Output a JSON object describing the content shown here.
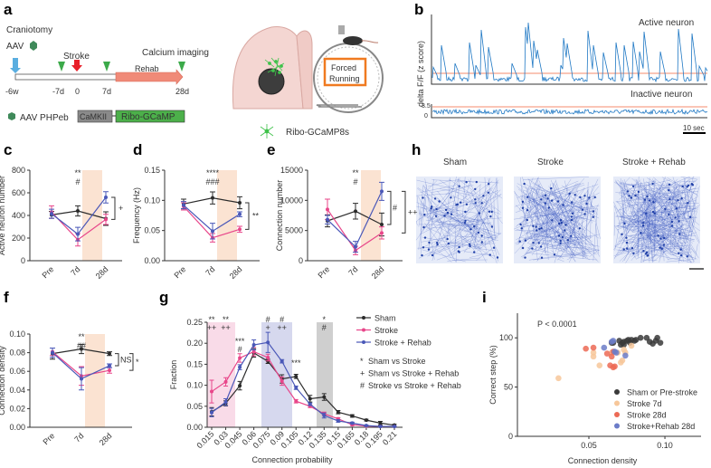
{
  "panel_labels": [
    "a",
    "b",
    "c",
    "d",
    "e",
    "f",
    "g",
    "h",
    "i"
  ],
  "colors": {
    "sham": "#2b2b2b",
    "stroke": "#e8468a",
    "rehab": "#4a58b8",
    "shade_orange": "#fbe3d2",
    "shade_pink": "#f9dbe8",
    "shade_blue": "#d6d8ee",
    "shade_gray": "#cfcfcf",
    "threshold": "#f0643c",
    "trace": "#1f78c4"
  },
  "panel_a": {
    "craniotomy": "Craniotomy",
    "aav": "AAV",
    "stroke": "Stroke",
    "calcium_imaging": "Calcium imaging",
    "rehab": "Rehab",
    "timepoints": [
      "-6w",
      "-7d",
      "0",
      "7d",
      "28d"
    ],
    "construct_label": "AAV PHPeb",
    "promoter": "CaMKII",
    "gene": "Ribo-GCaMP",
    "wheel_label_1": "Forced",
    "wheel_label_2": "Running",
    "neuron_legend": "Ribo-GCaMP8s"
  },
  "panel_b": {
    "ylabel": "delta F/F (z score)",
    "active": "Active neuron",
    "inactive": "Inactive neuron",
    "inactive_ticks": [
      "3.5",
      "0"
    ],
    "scale_bar": "10 sec"
  },
  "panel_h": {
    "titles": [
      "Sham",
      "Stroke",
      "Stroke + Rehab"
    ]
  },
  "chart_data": [
    {
      "id": "c",
      "type": "line",
      "ylabel": "Active neuron number",
      "categories": [
        "Pre",
        "7d",
        "28d"
      ],
      "ylim": [
        0,
        800
      ],
      "yticks": [
        "0",
        "200",
        "400",
        "600",
        "800"
      ],
      "series": [
        {
          "name": "Sham",
          "values": [
            405,
            440,
            372
          ],
          "err": [
            30,
            45,
            60
          ]
        },
        {
          "name": "Stroke",
          "values": [
            430,
            185,
            365
          ],
          "err": [
            55,
            55,
            45
          ]
        },
        {
          "name": "Stroke + Rehab",
          "values": [
            415,
            235,
            560
          ],
          "err": [
            40,
            60,
            50
          ]
        }
      ],
      "annotations": [
        "**",
        "#"
      ],
      "bracket": [
        "+"
      ]
    },
    {
      "id": "d",
      "type": "line",
      "ylabel": "Frequency (Hz)",
      "categories": [
        "Pre",
        "7d",
        "28d"
      ],
      "ylim": [
        0,
        0.15
      ],
      "yticks": [
        "0.00",
        "0.05",
        "0.10",
        "0.15"
      ],
      "series": [
        {
          "name": "Sham",
          "values": [
            0.094,
            0.104,
            0.096
          ],
          "err": [
            0.008,
            0.01,
            0.01
          ]
        },
        {
          "name": "Stroke",
          "values": [
            0.09,
            0.038,
            0.052
          ],
          "err": [
            0.006,
            0.007,
            0.005
          ]
        },
        {
          "name": "Stroke + Rehab",
          "values": [
            0.092,
            0.049,
            0.077
          ],
          "err": [
            0.006,
            0.013,
            0.004
          ]
        }
      ],
      "annotations": [
        "****",
        "###"
      ],
      "bracket": [
        "**"
      ]
    },
    {
      "id": "e",
      "type": "line",
      "ylabel": "Connection number",
      "categories": [
        "Pre",
        "7d",
        "28d"
      ],
      "ylim": [
        0,
        15000
      ],
      "yticks": [
        "0",
        "5000",
        "10000",
        "15000"
      ],
      "series": [
        {
          "name": "Sham",
          "values": [
            6600,
            8200,
            6000
          ],
          "err": [
            1000,
            1300,
            1900
          ]
        },
        {
          "name": "Stroke",
          "values": [
            8500,
            1700,
            4600
          ],
          "err": [
            1700,
            700,
            1000
          ]
        },
        {
          "name": "Stroke + Rehab",
          "values": [
            6800,
            2300,
            11500
          ],
          "err": [
            700,
            900,
            1500
          ]
        }
      ],
      "annotations": [
        "**",
        "#"
      ],
      "bracket": [
        "#",
        "++"
      ]
    },
    {
      "id": "f",
      "type": "line",
      "ylabel": "Connection density",
      "categories": [
        "Pre",
        "7d",
        "28d"
      ],
      "ylim": [
        0,
        0.1
      ],
      "yticks": [
        "0.00",
        "0.02",
        "0.04",
        "0.06",
        "0.08",
        "0.10"
      ],
      "series": [
        {
          "name": "Sham",
          "values": [
            0.079,
            0.084,
            0.079
          ],
          "err": [
            0.006,
            0.005,
            0.002
          ]
        },
        {
          "name": "Stroke",
          "values": [
            0.081,
            0.055,
            0.061
          ],
          "err": [
            0.004,
            0.01,
            0.003
          ]
        },
        {
          "name": "Stroke + Rehab",
          "values": [
            0.08,
            0.052,
            0.066
          ],
          "err": [
            0.005,
            0.012,
            0.002
          ]
        }
      ],
      "annotations": [
        "**",
        "##"
      ],
      "bracket": [
        "NS",
        "*"
      ]
    },
    {
      "id": "g",
      "type": "line",
      "xlabel": "Connection probability",
      "ylabel": "Fraction",
      "ylim": [
        0,
        0.25
      ],
      "yticks": [
        "0.00",
        "0.05",
        "0.10",
        "0.15",
        "0.20",
        "0.25"
      ],
      "categories": [
        "0.015",
        "0.03",
        "0.045",
        "0.06",
        "0.075",
        "0.09",
        "0.105",
        "0.12",
        "0.135",
        "0.15",
        "0.165",
        "0.18",
        "0.195",
        "0.21"
      ],
      "series": [
        {
          "name": "Sham",
          "values": [
            0.037,
            0.057,
            0.099,
            0.177,
            0.157,
            0.115,
            0.121,
            0.068,
            0.072,
            0.036,
            0.027,
            0.017,
            0.01,
            0.005
          ],
          "err": [
            0.01,
            0.006,
            0.01,
            0.01,
            0.005,
            0.01,
            0.005,
            0.008,
            0.008,
            0.004,
            0.003,
            0.002,
            0.004,
            0.002
          ]
        },
        {
          "name": "Stroke",
          "values": [
            0.085,
            0.108,
            0.165,
            0.18,
            0.166,
            0.11,
            0.062,
            0.05,
            0.032,
            0.02,
            0.006,
            0.003,
            0.002,
            0.002
          ],
          "err": [
            0.027,
            0.01,
            0.01,
            0.01,
            0.008,
            0.01,
            0.004,
            0.003,
            0.004,
            0.003,
            0.002,
            0.001,
            0.001,
            0.001
          ]
        },
        {
          "name": "Stroke + Rehab",
          "values": [
            0.035,
            0.06,
            0.143,
            0.196,
            0.202,
            0.157,
            0.094,
            0.055,
            0.028,
            0.015,
            0.01,
            0.004,
            0.002,
            0.002
          ],
          "err": [
            0.01,
            0.008,
            0.006,
            0.012,
            0.024,
            0.004,
            0.004,
            0.003,
            0.006,
            0.003,
            0.002,
            0.001,
            0.001,
            0.001
          ]
        }
      ],
      "legend": [
        "Sham",
        "Stroke",
        "Stroke + Rehab"
      ],
      "test_legend": [
        {
          "sym": "*",
          "text": "Sham vs Stroke"
        },
        {
          "sym": "+",
          "text": "Sham vs Stroke + Rehab"
        },
        {
          "sym": "#",
          "text": "Stroke vs Stroke + Rehab"
        }
      ],
      "annotations": [
        {
          "x": "0.015",
          "top": "**",
          "bottom": "++"
        },
        {
          "x": "0.03",
          "top": "**",
          "bottom": "++"
        },
        {
          "x": "0.045",
          "top": "***",
          "bottom": "#"
        },
        {
          "x": "0.075",
          "top": "#",
          "bottom": "+"
        },
        {
          "x": "0.09",
          "top": "#",
          "bottom": "++"
        },
        {
          "x": "0.105",
          "top": "***",
          "bottom": ""
        },
        {
          "x": "0.135",
          "top": "*",
          "bottom": "#"
        }
      ]
    },
    {
      "id": "i",
      "type": "scatter",
      "xlabel": "Connection density",
      "ylabel": "Correct step (%)",
      "xlim": [
        0.003,
        0.12
      ],
      "ylim": [
        0,
        125
      ],
      "xticks": [
        "0.05",
        "0.10"
      ],
      "yticks": [
        "0",
        "50",
        "100"
      ],
      "annotation": "P < 0.0001",
      "series": [
        {
          "name": "Sham or Pre-stroke",
          "color": "#3a3a3a",
          "points": [
            [
              0.065,
              95
            ],
            [
              0.066,
              95
            ],
            [
              0.07,
              97
            ],
            [
              0.071,
              93
            ],
            [
              0.072,
              95
            ],
            [
              0.073,
              96
            ],
            [
              0.073,
              93
            ],
            [
              0.075,
              97
            ],
            [
              0.076,
              98
            ],
            [
              0.077,
              95
            ],
            [
              0.078,
              98
            ],
            [
              0.08,
              97
            ],
            [
              0.081,
              98
            ],
            [
              0.084,
              100
            ],
            [
              0.088,
              100
            ],
            [
              0.09,
              96
            ],
            [
              0.092,
              94
            ],
            [
              0.094,
              97
            ],
            [
              0.095,
              100
            ],
            [
              0.097,
              95
            ]
          ]
        },
        {
          "name": "Stroke 7d",
          "color": "#f7c79a",
          "points": [
            [
              0.03,
              59
            ],
            [
              0.053,
              85
            ],
            [
              0.053,
              81
            ],
            [
              0.057,
              72
            ],
            [
              0.065,
              85
            ],
            [
              0.069,
              85
            ],
            [
              0.071,
              75
            ],
            [
              0.072,
              77
            ],
            [
              0.073,
              88
            ],
            [
              0.074,
              85
            ],
            [
              0.078,
              92
            ]
          ]
        },
        {
          "name": "Stroke 28d",
          "color": "#ec6a55",
          "points": [
            [
              0.048,
              89
            ],
            [
              0.053,
              90
            ],
            [
              0.062,
              84
            ],
            [
              0.064,
              72
            ],
            [
              0.065,
              81
            ],
            [
              0.066,
              86
            ],
            [
              0.066,
              70
            ],
            [
              0.067,
              71
            ]
          ]
        },
        {
          "name": "Stroke+Rehab 28d",
          "color": "#6c7cc8",
          "points": [
            [
              0.06,
              90
            ],
            [
              0.065,
              96
            ],
            [
              0.066,
              97
            ],
            [
              0.067,
              86
            ],
            [
              0.068,
              85
            ],
            [
              0.074,
              82
            ]
          ]
        }
      ]
    }
  ]
}
